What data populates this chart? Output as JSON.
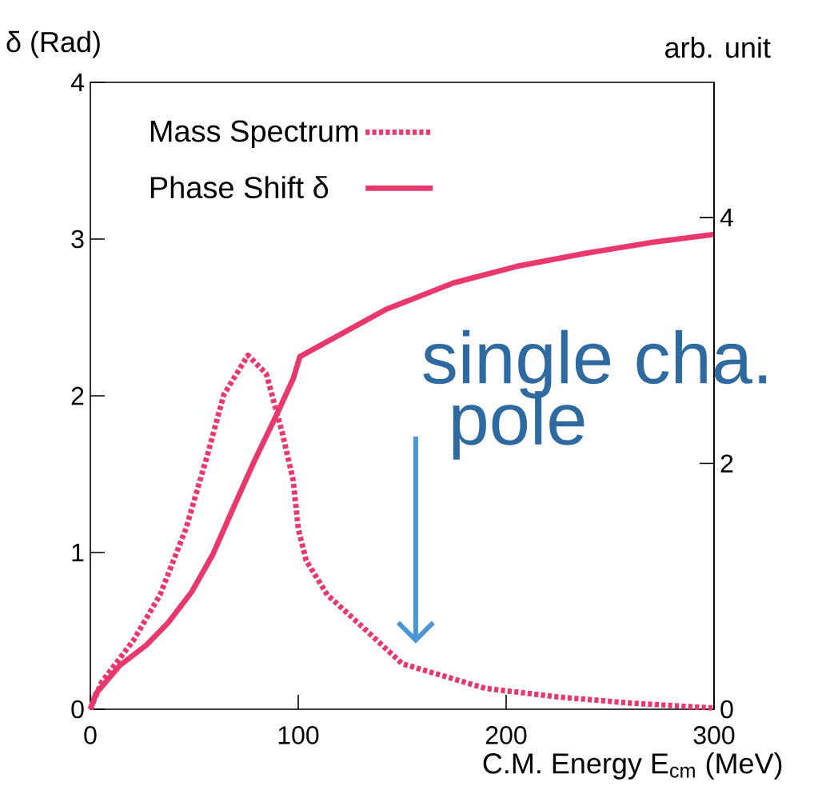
{
  "chart_data": {
    "type": "line",
    "xlabel": "C.M. Energy  E$_{cm}$ (MeV)",
    "ylabel": "δ (Rad)",
    "y2label": "arb. unit",
    "xlim": [
      0,
      300
    ],
    "xticks": [
      0,
      100,
      200,
      300
    ],
    "ylim": [
      0,
      4
    ],
    "yticks": [
      0,
      1,
      2,
      3,
      4
    ],
    "y2lim": [
      0,
      5.1
    ],
    "y2ticks": [
      0,
      2,
      4
    ],
    "legend": "top left",
    "annotations": [
      "single cha.",
      "pole"
    ],
    "series": [
      {
        "name": "Mass Spectrum",
        "color": "#e8386e",
        "axis": "y2",
        "line_style": "dotted",
        "x": [
          0,
          5.4,
          20.7,
          33.5,
          46,
          56.5,
          64.2,
          75.8,
          84.6,
          92.3,
          97.6,
          100,
          103.8,
          114,
          129.6,
          150,
          190,
          225,
          260,
          300
        ],
        "values": [
          0,
          0.22,
          0.56,
          0.93,
          1.47,
          2.08,
          2.56,
          2.88,
          2.73,
          2.25,
          1.86,
          1.47,
          1.21,
          0.93,
          0.69,
          0.37,
          0.17,
          0.1,
          0.05,
          0.01
        ]
      },
      {
        "name": "Phase Shift δ",
        "color": "#e8386e",
        "axis": "y",
        "line_style": "solid",
        "x": [
          0,
          2.7,
          14.2,
          27,
          37.3,
          48.8,
          59,
          69.3,
          78.4,
          90,
          97.6,
          100.8,
          110.4,
          142,
          174.6,
          206.5,
          238.5,
          270.8,
          300
        ],
        "values": [
          0,
          0.1,
          0.28,
          0.41,
          0.55,
          0.75,
          0.99,
          1.3,
          1.57,
          1.89,
          2.11,
          2.25,
          2.32,
          2.55,
          2.72,
          2.83,
          2.91,
          2.98,
          3.03
        ]
      }
    ]
  }
}
